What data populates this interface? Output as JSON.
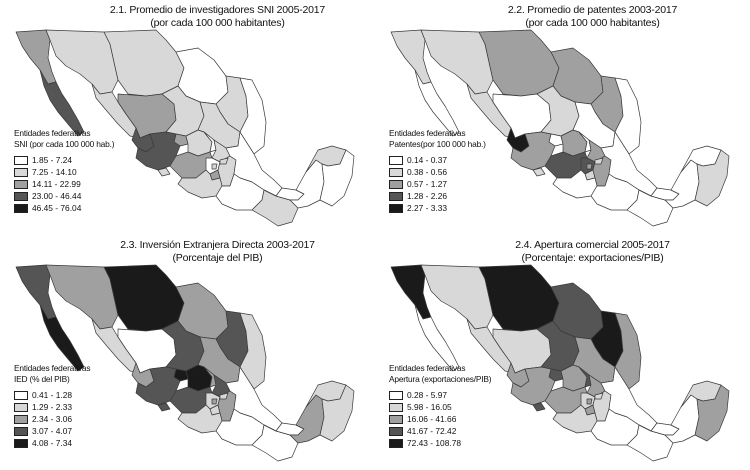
{
  "colors": [
    "#ffffff",
    "#d8d8d8",
    "#a0a0a0",
    "#555555",
    "#1a1a1a"
  ],
  "panels": [
    {
      "title_line1": "2.1. Promedio de investigadores SNI 2005-2017",
      "title_line2": "(por cada 100 000 habitantes)",
      "legend_title1": "Entidades federativas",
      "legend_title2": "SNI (por cada 100 000 hab.)",
      "legend": [
        "1.85 - 7.24",
        "7.25 - 14.10",
        "14.11 - 22.99",
        "23.00 - 46.44",
        "46.45 - 76.04"
      ],
      "state_classes": [
        2,
        3,
        1,
        1,
        0,
        1,
        0,
        1,
        2,
        1,
        1,
        3,
        2,
        3,
        1,
        0,
        1,
        2,
        0,
        1,
        2,
        1,
        1,
        0,
        1,
        0,
        1,
        0,
        0,
        1,
        0,
        1
      ]
    },
    {
      "title_line1": "2.2. Promedio de patentes 2003-2017",
      "title_line2": "(por cada 100 000 habitantes)",
      "legend_title1": "Entidades federativas",
      "legend_title2": "Patentes(por 100 000 hab.)",
      "legend": [
        "0.14 - 0.37",
        "0.38 - 0.56",
        "0.57 - 1.27",
        "1.28 - 2.26",
        "2.27 - 3.33"
      ],
      "state_classes": [
        1,
        0,
        1,
        2,
        2,
        2,
        0,
        1,
        0,
        1,
        0,
        4,
        0,
        2,
        2,
        0,
        2,
        3,
        3,
        2,
        1,
        2,
        1,
        0,
        0,
        0,
        0,
        0,
        0,
        0,
        1,
        1
      ]
    },
    {
      "title_line1": "2.3. Inversión Extranjera Directa 2003-2017",
      "title_line2": "(Porcentaje del PIB)",
      "legend_title1": "Entidades federativas",
      "legend_title2": "IED (% del PIB)",
      "legend": [
        "0.41 - 1.28",
        "1.29 - 2.33",
        "2.34 - 3.06",
        "3.07 - 4.07",
        "4.08 - 7.34"
      ],
      "state_classes": [
        3,
        4,
        2,
        4,
        2,
        3,
        1,
        1,
        0,
        3,
        2,
        2,
        4,
        3,
        4,
        2,
        3,
        3,
        1,
        2,
        1,
        2,
        1,
        0,
        1,
        0,
        0,
        0,
        2,
        1,
        1,
        3
      ]
    },
    {
      "title_line1": "2.4. Apertura comercial 2005-2017",
      "title_line2": "(Porcentaje: exportaciones/PIB)",
      "legend_title1": "Entidades federativas",
      "legend_title2": "Apertura (exportaciones/PIB)",
      "legend": [
        "0.28 - 5.97",
        "5.98 - 16.05",
        "16.06 - 41.66",
        "41.67 - 72.42",
        "72.43 - 108.78"
      ],
      "state_classes": [
        4,
        0,
        1,
        4,
        3,
        4,
        2,
        1,
        1,
        3,
        2,
        2,
        3,
        2,
        2,
        3,
        2,
        2,
        1,
        2,
        2,
        1,
        1,
        0,
        1,
        0,
        0,
        0,
        0,
        1,
        2,
        3
      ]
    }
  ]
}
